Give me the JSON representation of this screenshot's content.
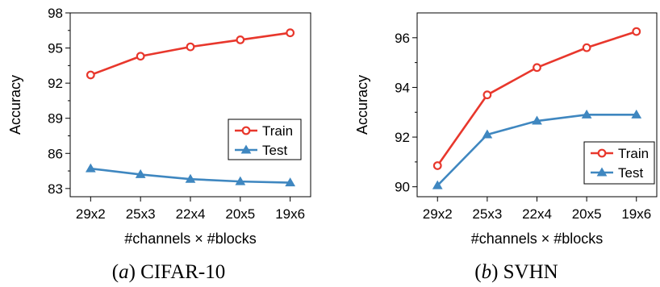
{
  "chart_data": [
    {
      "type": "line",
      "caption_letter": "a",
      "caption_text": "CIFAR-10",
      "xlabel": "#channels × #blocks",
      "ylabel": "Accuracy",
      "categories": [
        "29x2",
        "25x3",
        "22x4",
        "20x5",
        "19x6"
      ],
      "ylim": [
        82.3,
        98
      ],
      "yticks": [
        "98",
        "95",
        "92",
        "89",
        "86",
        "83"
      ],
      "ytick_values": [
        98,
        95,
        92,
        89,
        86,
        83
      ],
      "grid": false,
      "legend_position": "center-right",
      "series": [
        {
          "name": "Train",
          "marker": "circle",
          "color": "#e8372c",
          "values": [
            92.7,
            94.3,
            95.1,
            95.7,
            96.3
          ]
        },
        {
          "name": "Test",
          "marker": "triangle",
          "color": "#3f87c0",
          "values": [
            84.7,
            84.2,
            83.8,
            83.6,
            83.5
          ]
        }
      ]
    },
    {
      "type": "line",
      "caption_letter": "b",
      "caption_text": "SVHN",
      "xlabel": "#channels × #blocks",
      "ylabel": "Accuracy",
      "categories": [
        "29x2",
        "25x3",
        "22x4",
        "20x5",
        "19x6"
      ],
      "ylim": [
        89.6,
        97
      ],
      "yticks": [
        "96",
        "94",
        "92",
        "90"
      ],
      "ytick_values": [
        96,
        94,
        92,
        90
      ],
      "grid": false,
      "legend_position": "bottom-right",
      "series": [
        {
          "name": "Train",
          "marker": "circle",
          "color": "#e8372c",
          "values": [
            90.85,
            93.7,
            94.8,
            95.6,
            96.25
          ]
        },
        {
          "name": "Test",
          "marker": "triangle",
          "color": "#3f87c0",
          "values": [
            90.05,
            92.1,
            92.65,
            92.9,
            92.9
          ]
        }
      ]
    }
  ]
}
